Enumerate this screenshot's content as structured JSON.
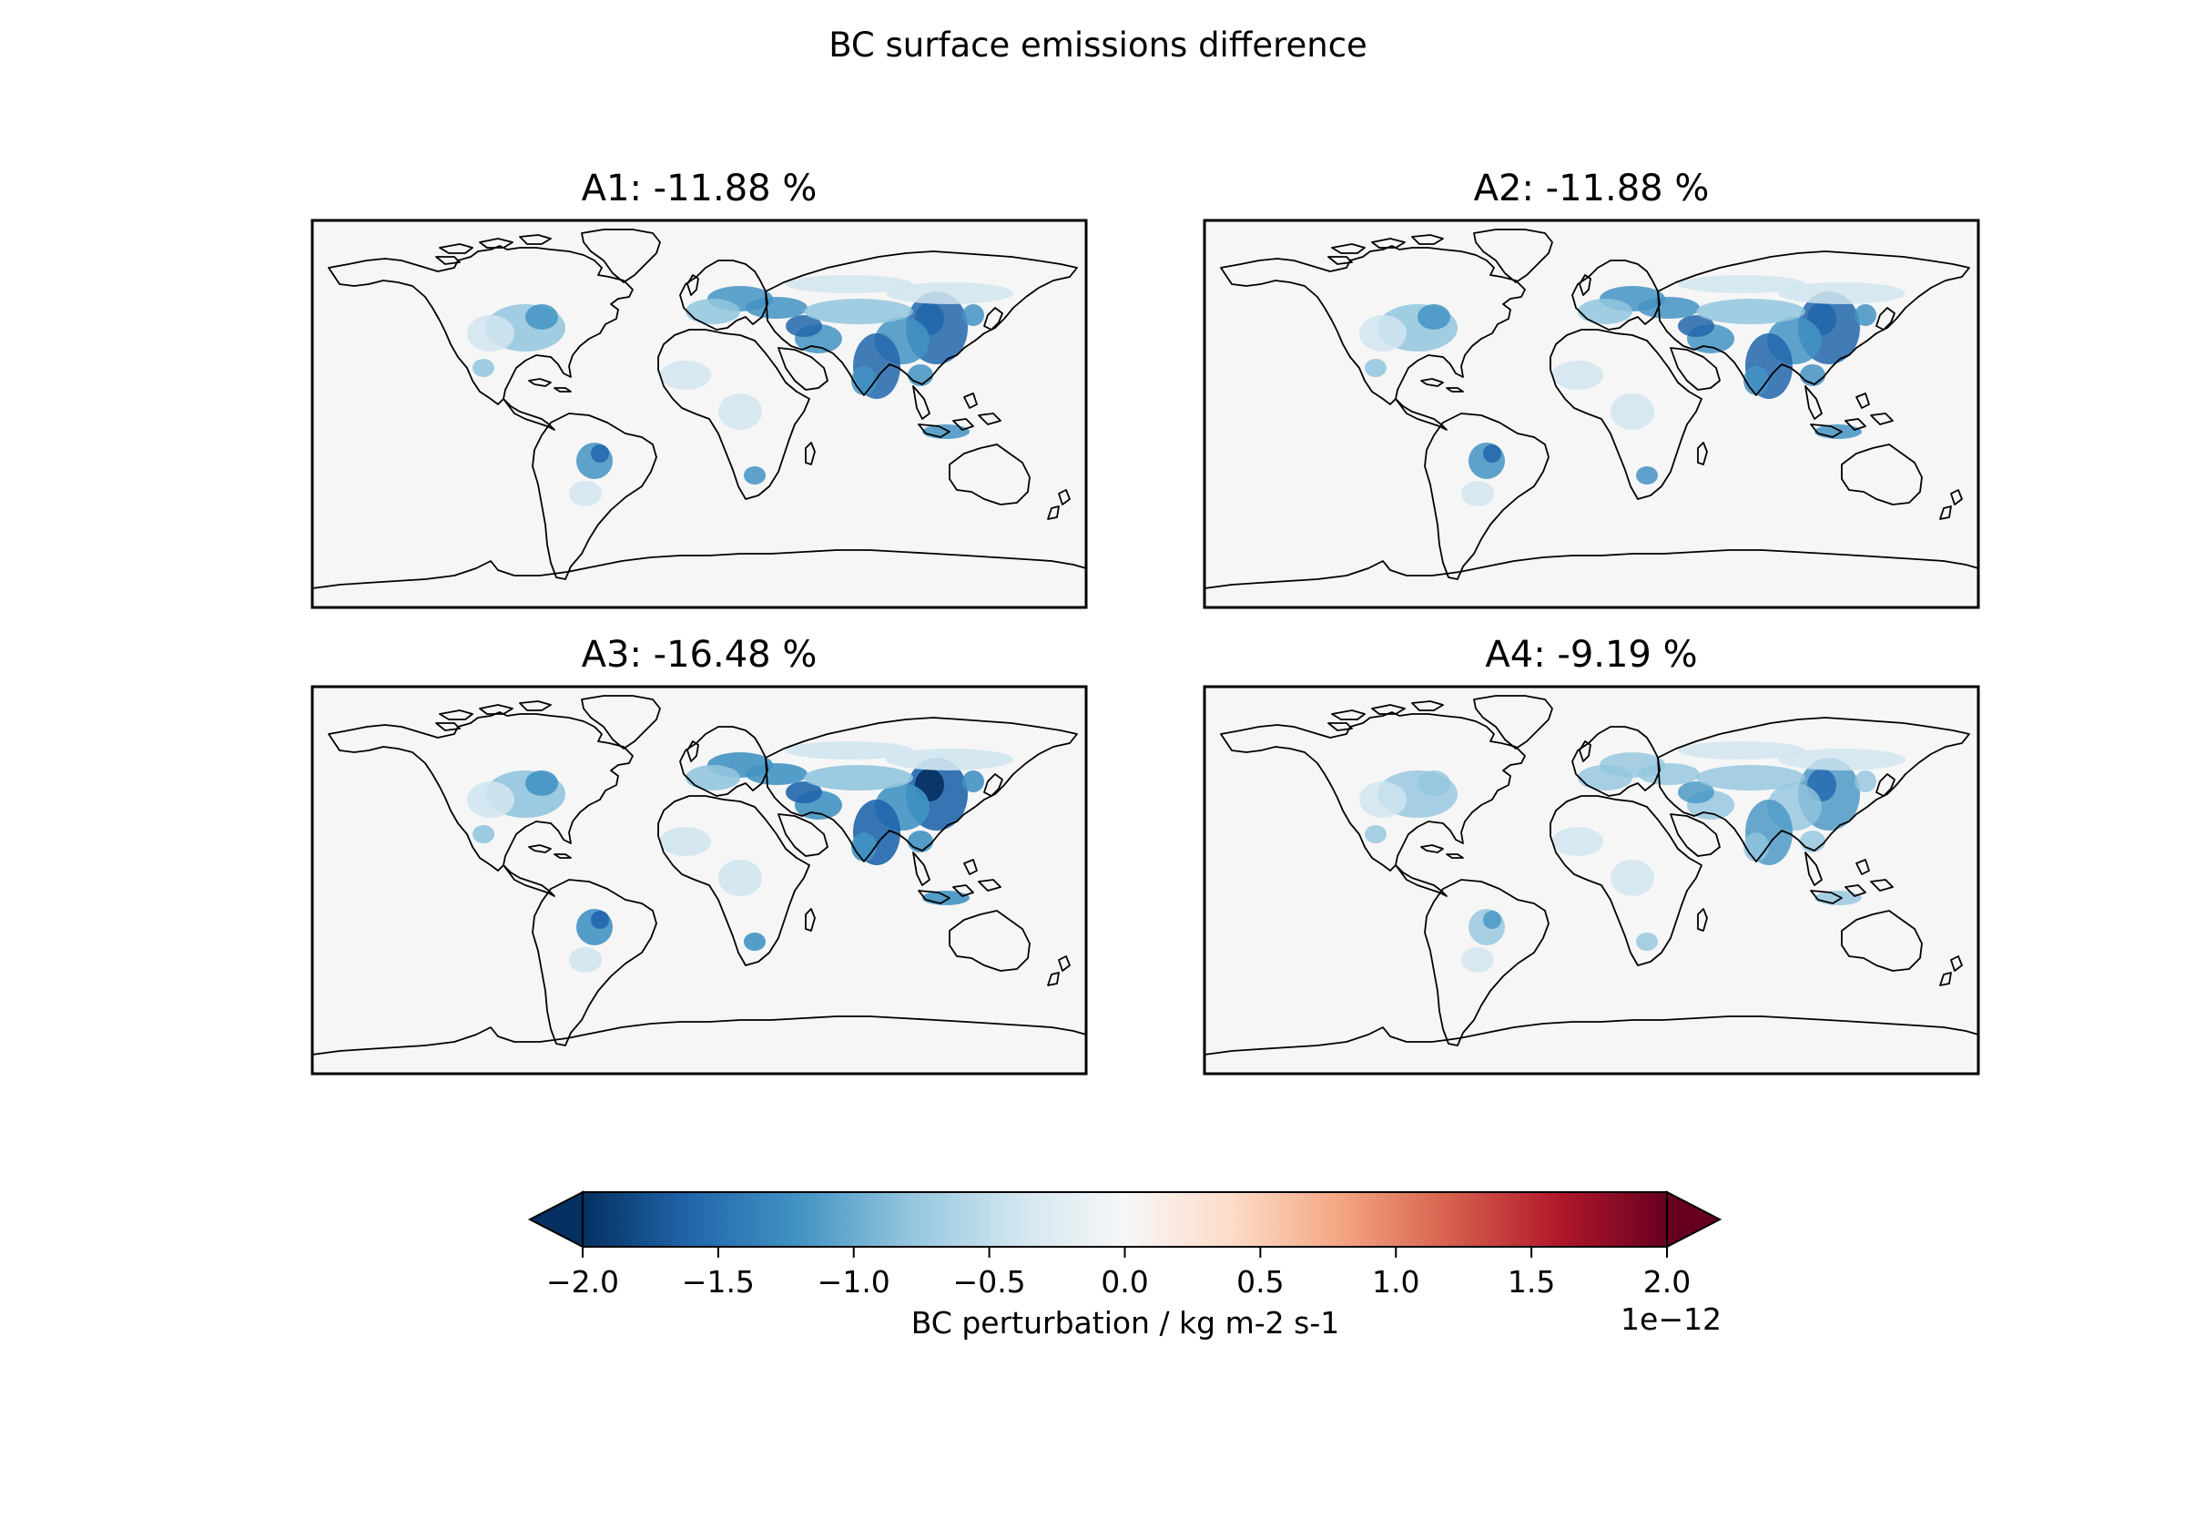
{
  "figure_title": "BC surface emissions difference",
  "panels": [
    {
      "label": "A1: -11.88 %",
      "intensity": 0.85
    },
    {
      "label": "A2: -11.88 %",
      "intensity": 0.85
    },
    {
      "label": "A3: -16.48 %",
      "intensity": 1.0
    },
    {
      "label": "A4: -9.19 %",
      "intensity": 0.7
    }
  ],
  "colorbar": {
    "label": "BC perturbation / kg m-2 s-1",
    "multiplier": "1e−12",
    "min": -2.0,
    "max": 2.0,
    "ticks": [
      -2.0,
      -1.5,
      -1.0,
      -0.5,
      0.0,
      0.5,
      1.0,
      1.5,
      2.0
    ],
    "tick_labels": [
      "−2.0",
      "−1.5",
      "−1.0",
      "−0.5",
      "0.0",
      "0.5",
      "1.0",
      "1.5",
      "2.0"
    ],
    "extend": "both",
    "colormap": "RdBu_r",
    "stops": [
      "#053061",
      "#2166ac",
      "#4393c3",
      "#92c5de",
      "#d1e5f0",
      "#f7f7f7",
      "#fddbc7",
      "#f4a582",
      "#d6604d",
      "#b2182b",
      "#67001f"
    ]
  }
}
